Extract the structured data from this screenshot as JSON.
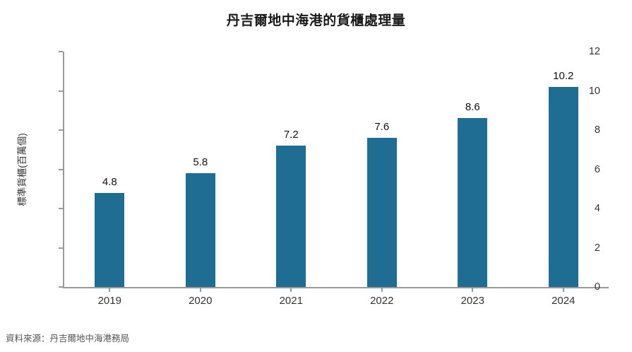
{
  "chart_data": {
    "type": "bar",
    "title": "丹吉爾地中海港的貨櫃處理量",
    "categories": [
      "2019",
      "2020",
      "2021",
      "2022",
      "2023",
      "2024"
    ],
    "values": [
      4.8,
      5.8,
      7.2,
      7.6,
      8.6,
      10.2
    ],
    "value_labels": [
      "4.8",
      "5.8",
      "7.2",
      "7.6",
      "8.6",
      "10.2"
    ],
    "xlabel": "",
    "ylabel": "標準貨櫃(百萬個)",
    "ylim": [
      0,
      12
    ],
    "yticks": [
      0,
      2,
      4,
      6,
      8,
      10,
      12
    ],
    "grid": false,
    "legend_position": "none",
    "bar_color": "#1f6d92",
    "axis_color": "#9a9a9a",
    "title_color": "#1a1a1a",
    "tick_label_color": "#333333",
    "value_label_color": "#111111"
  },
  "footer": {
    "source": "資料來源：丹吉爾地中海港務局"
  }
}
